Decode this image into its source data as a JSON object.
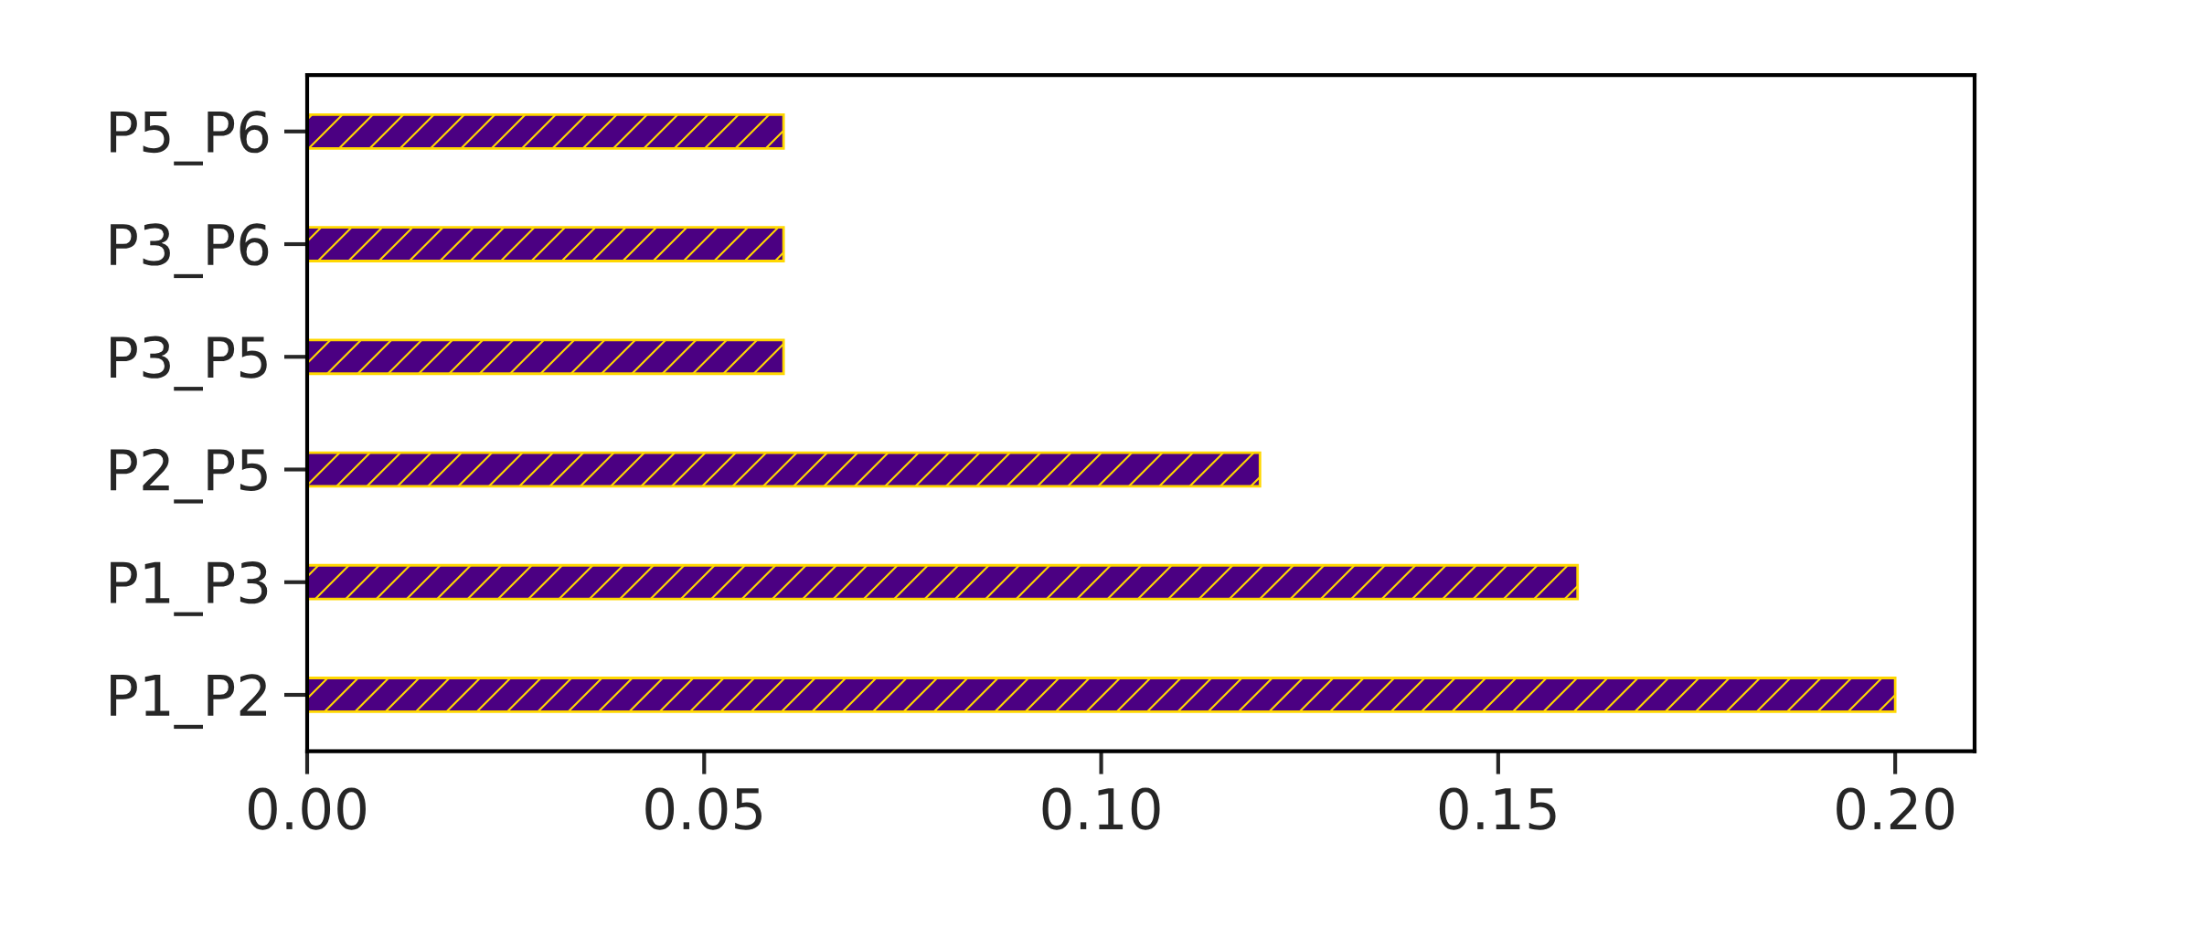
{
  "chart_data": {
    "type": "bar",
    "orientation": "horizontal",
    "categories": [
      "P5_P6",
      "P3_P6",
      "P3_P5",
      "P2_P5",
      "P1_P3",
      "P1_P2"
    ],
    "values": [
      0.06,
      0.06,
      0.06,
      0.12,
      0.16,
      0.2
    ],
    "color": "#4b0082",
    "xlim": [
      0,
      0.21
    ],
    "xticks": [
      {
        "value": 0,
        "label": "0.00"
      },
      {
        "value": 0.05,
        "label": "0.05"
      },
      {
        "value": 0.1,
        "label": "0.10"
      },
      {
        "value": 0.15,
        "label": "0.15"
      },
      {
        "value": 0.2,
        "label": "0.20"
      }
    ],
    "grid": false,
    "legend": false
  }
}
